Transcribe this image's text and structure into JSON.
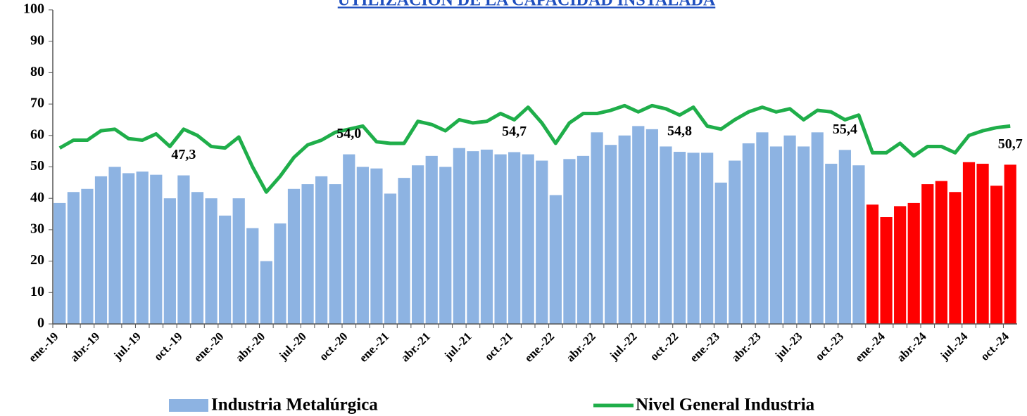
{
  "chart_data": {
    "type": "bar_line",
    "title": "UTILIZACIÓN DE LA CAPACIDAD INSTALADA",
    "categories": [
      "ene.-19",
      null,
      null,
      "abr.-19",
      null,
      null,
      "jul.-19",
      null,
      null,
      "oct.-19",
      null,
      null,
      "ene.-20",
      null,
      null,
      "abr.-20",
      null,
      null,
      "jul.-20",
      null,
      null,
      "oct.-20",
      null,
      null,
      "ene.-21",
      null,
      null,
      "abr.-21",
      null,
      null,
      "jul.-21",
      null,
      null,
      "oct.-21",
      null,
      null,
      "ene.-22",
      null,
      null,
      "abr.-22",
      null,
      null,
      "jul.-22",
      null,
      null,
      "oct.-22",
      null,
      null,
      "ene.-23",
      null,
      null,
      "abr.-23",
      null,
      null,
      "jul.-23",
      null,
      null,
      "oct.-23",
      null,
      null,
      "ene.-24",
      null,
      null,
      "abr.-24",
      null,
      null,
      "jul.-24",
      null,
      null,
      "oct.-24"
    ],
    "series": [
      {
        "name": "Industria Metalúrgica",
        "type": "bar",
        "color": "#8db3e2",
        "colors": [
          "#8db3e2",
          "#8db3e2",
          "#8db3e2",
          "#8db3e2",
          "#8db3e2",
          "#8db3e2",
          "#8db3e2",
          "#8db3e2",
          "#8db3e2",
          "#8db3e2",
          "#8db3e2",
          "#8db3e2",
          "#8db3e2",
          "#8db3e2",
          "#8db3e2",
          "#8db3e2",
          "#8db3e2",
          "#8db3e2",
          "#8db3e2",
          "#8db3e2",
          "#8db3e2",
          "#8db3e2",
          "#8db3e2",
          "#8db3e2",
          "#8db3e2",
          "#8db3e2",
          "#8db3e2",
          "#8db3e2",
          "#8db3e2",
          "#8db3e2",
          "#8db3e2",
          "#8db3e2",
          "#8db3e2",
          "#8db3e2",
          "#8db3e2",
          "#8db3e2",
          "#8db3e2",
          "#8db3e2",
          "#8db3e2",
          "#8db3e2",
          "#8db3e2",
          "#8db3e2",
          "#8db3e2",
          "#8db3e2",
          "#8db3e2",
          "#8db3e2",
          "#8db3e2",
          "#8db3e2",
          "#8db3e2",
          "#8db3e2",
          "#8db3e2",
          "#8db3e2",
          "#8db3e2",
          "#8db3e2",
          "#8db3e2",
          "#8db3e2",
          "#8db3e2",
          "#8db3e2",
          "#8db3e2",
          "#ff0000",
          "#ff0000",
          "#ff0000",
          "#ff0000",
          "#ff0000",
          "#ff0000",
          "#ff0000",
          "#ff0000",
          "#ff0000",
          "#ff0000",
          "#ff0000"
        ],
        "values": [
          38.5,
          42,
          43,
          47,
          50,
          48,
          48.5,
          47.5,
          40,
          47.3,
          42,
          40,
          34.5,
          40,
          30.5,
          20,
          32,
          43,
          44.5,
          47,
          44.5,
          54.0,
          50,
          49.5,
          41.5,
          46.5,
          50.5,
          53.5,
          50,
          56,
          55,
          55.5,
          54,
          54.7,
          54,
          52,
          41,
          52.5,
          53.5,
          61,
          57,
          60,
          63,
          62,
          56.5,
          54.8,
          54.5,
          54.5,
          45,
          52,
          57.5,
          61,
          56.5,
          60,
          56.5,
          61,
          51,
          55.4,
          50.5,
          38,
          34,
          37.5,
          38.5,
          44.5,
          45.5,
          42,
          51.5,
          51,
          44,
          50.7
        ],
        "value_labels": [
          null,
          null,
          null,
          null,
          null,
          null,
          null,
          null,
          null,
          "47,3",
          null,
          null,
          null,
          null,
          null,
          null,
          null,
          null,
          null,
          null,
          null,
          "54,0",
          null,
          null,
          null,
          null,
          null,
          null,
          null,
          null,
          null,
          null,
          null,
          "54,7",
          null,
          null,
          null,
          null,
          null,
          null,
          null,
          null,
          null,
          null,
          null,
          "54,8",
          null,
          null,
          null,
          null,
          null,
          null,
          null,
          null,
          null,
          null,
          null,
          "55,4",
          null,
          null,
          null,
          null,
          null,
          null,
          null,
          null,
          null,
          null,
          null,
          "50,7"
        ]
      },
      {
        "name": "Nivel General Industria",
        "type": "line",
        "color": "#1fae4a",
        "values": [
          56,
          58.5,
          58.5,
          61.5,
          62,
          59,
          58.5,
          60.5,
          56.5,
          62,
          60,
          56.5,
          56,
          59.5,
          50,
          42,
          47,
          53,
          57,
          58.5,
          61,
          62,
          63,
          58,
          57.5,
          57.5,
          64.5,
          63.5,
          61.5,
          65,
          64,
          64.5,
          67,
          65,
          69,
          64,
          57.5,
          64,
          67,
          67,
          68,
          69.5,
          67.5,
          69.5,
          68.5,
          66.5,
          69,
          63,
          62,
          65,
          67.5,
          69,
          67.5,
          68.5,
          65,
          68,
          67.5,
          65,
          66.5,
          54.5,
          54.5,
          57.5,
          53.5,
          56.5,
          56.5,
          54.5,
          60,
          61.5,
          62.5,
          63
        ]
      }
    ],
    "ylim": [
      0,
      100
    ],
    "yticks": [
      0,
      10,
      20,
      30,
      40,
      50,
      60,
      70,
      80,
      90,
      100
    ]
  }
}
